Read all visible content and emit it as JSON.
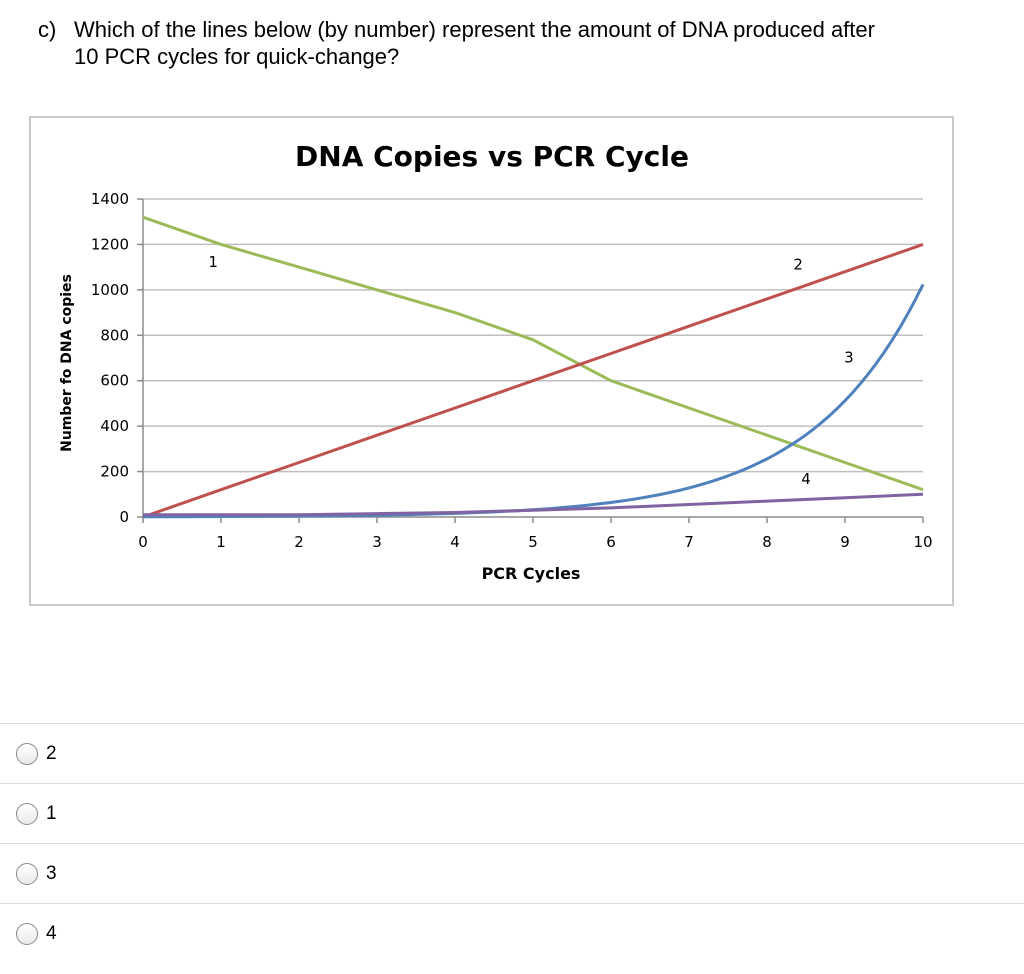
{
  "question": {
    "label": "c)",
    "line1": "Which of the lines below (by number) represent the amount of DNA produced after",
    "line2": "10 PCR cycles for quick-change?"
  },
  "chart_data": {
    "type": "line",
    "title": "DNA Copies vs PCR Cycle",
    "xlabel": "PCR Cycles",
    "ylabel": "Number fo DNA copies",
    "xlim": [
      0,
      10
    ],
    "ylim": [
      0,
      1400
    ],
    "xticks": [
      0,
      1,
      2,
      3,
      4,
      5,
      6,
      7,
      8,
      9,
      10
    ],
    "yticks": [
      0,
      200,
      400,
      600,
      800,
      1000,
      1200,
      1400
    ],
    "grid": true,
    "series": [
      {
        "name": "1",
        "color": "#9bbb59",
        "x": [
          0,
          1,
          2,
          3,
          4,
          5,
          6,
          7,
          8,
          9,
          10
        ],
        "y": [
          1320,
          1200,
          1100,
          1000,
          900,
          780,
          600,
          480,
          360,
          240,
          120
        ]
      },
      {
        "name": "2",
        "color": "#c0504d",
        "x": [
          0,
          1,
          2,
          3,
          4,
          5,
          6,
          7,
          8,
          9,
          10
        ],
        "y": [
          0,
          120,
          240,
          360,
          480,
          600,
          720,
          840,
          960,
          1080,
          1200
        ]
      },
      {
        "name": "3",
        "color": "#4f81bd",
        "x": [
          0,
          1,
          2,
          3,
          4,
          5,
          6,
          7,
          8,
          9,
          10
        ],
        "y": [
          1,
          2,
          4,
          8,
          16,
          32,
          64,
          128,
          256,
          512,
          1024
        ]
      },
      {
        "name": "4",
        "color": "#8064a2",
        "x": [
          0,
          1,
          2,
          3,
          4,
          5,
          6,
          7,
          8,
          9,
          10
        ],
        "y": [
          10,
          10,
          10,
          15,
          20,
          30,
          40,
          55,
          70,
          85,
          100
        ]
      }
    ],
    "line_labels": [
      {
        "text": "1",
        "x": 0.9,
        "y": 1100
      },
      {
        "text": "2",
        "x": 8.4,
        "y": 1090
      },
      {
        "text": "3",
        "x": 9.05,
        "y": 680
      },
      {
        "text": "4",
        "x": 8.5,
        "y": 145
      }
    ]
  },
  "options": [
    {
      "label": "2"
    },
    {
      "label": "1"
    },
    {
      "label": "3"
    },
    {
      "label": "4"
    }
  ]
}
